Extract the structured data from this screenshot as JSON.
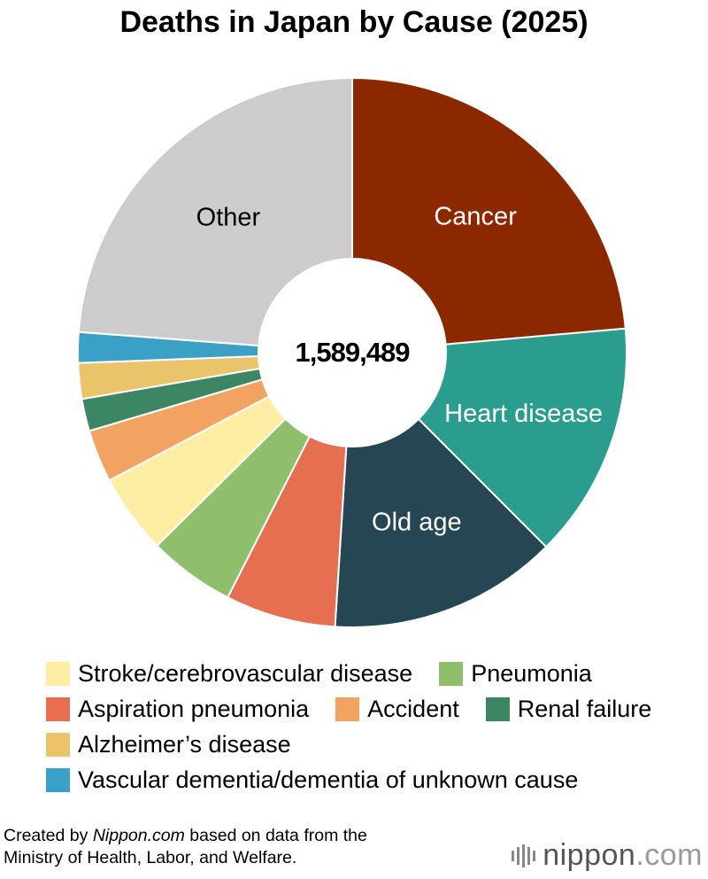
{
  "chart_data": {
    "type": "donut",
    "title": "Deaths in Japan by Cause (2025)",
    "categories": [
      "Cancer",
      "Heart disease",
      "Old age",
      "Aspiration pneumonia",
      "Pneumonia",
      "Stroke/cerebrovascular disease",
      "Accident",
      "Renal failure",
      "Alzheimer’s disease",
      "Vascular dementia/dementia of unknown cause",
      "Other"
    ],
    "values": [
      23.6,
      13.9,
      13.5,
      6.5,
      5.1,
      4.7,
      3.1,
      1.9,
      2.1,
      1.8,
      23.8
    ],
    "colors": [
      "#8b2800",
      "#2b9d8e",
      "#274654",
      "#e66f51",
      "#8fbf6a",
      "#fdeea3",
      "#f2a362",
      "#3d8663",
      "#e9c46a",
      "#3aa0c6",
      "#cccccc"
    ],
    "legend": [
      "Stroke/cerebrovascular disease",
      "Pneumonia",
      "Aspiration pneumonia",
      "Accident",
      "Renal failure",
      "Alzheimer’s disease",
      "Vascular dementia/dementia of unknown cause"
    ],
    "total": {
      "value": 1589489,
      "label": "1,589,489"
    },
    "source": [
      "Created by ",
      "Nippon.com",
      " based on data from the",
      "Ministry of Health, Labor, and Welfare."
    ],
    "logo": [
      "nippon",
      ".com"
    ]
  }
}
